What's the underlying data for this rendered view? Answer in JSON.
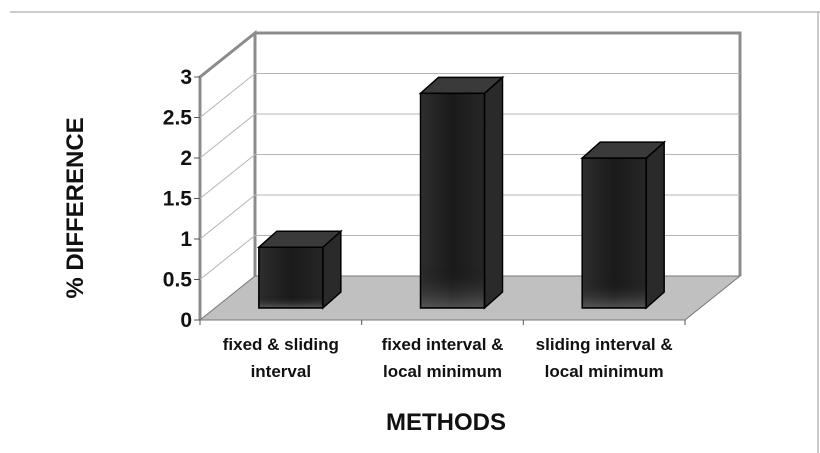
{
  "chart_data": {
    "type": "bar",
    "categories": [
      [
        "fixed & sliding",
        "interval"
      ],
      [
        "fixed interval &",
        "local minimum"
      ],
      [
        "sliding interval &",
        "local minimum"
      ]
    ],
    "values": [
      0.75,
      2.65,
      1.85
    ],
    "ylabel": "% DIFFERENCE",
    "xlabel": "METHODS",
    "ylim": [
      0,
      3
    ],
    "yticks": [
      "0",
      "0.5",
      "1",
      "1.5",
      "2",
      "2.5",
      "3"
    ],
    "grid": true,
    "three_d": true,
    "colors": {
      "bar_front": "#1e1e1e",
      "bar_side": "#2a2a2a",
      "bar_top": "#3a3a3a",
      "floor": "#c0c0c0",
      "wall_line": "#8c8c8c",
      "grid": "#b5b5b5"
    }
  }
}
